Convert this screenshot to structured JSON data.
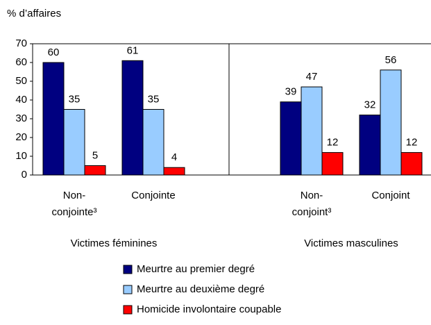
{
  "chart_data": {
    "type": "bar",
    "y_label": "% d’affaires",
    "categories": [
      "Non-conjointe³",
      "Conjointe",
      "Non-conjoint³",
      "Conjoint"
    ],
    "groups": [
      "Victimes féminines",
      "Victimes masculines"
    ],
    "series": [
      {
        "name": "Meurtre au premier degré",
        "color": "#000080",
        "values": [
          60,
          61,
          39,
          32
        ]
      },
      {
        "name": "Meurtre au deuxième degré",
        "color": "#99ccff",
        "values": [
          35,
          35,
          47,
          56
        ]
      },
      {
        "name": "Homicide involontaire coupable",
        "color": "#ff0000",
        "values": [
          5,
          4,
          12,
          12
        ]
      }
    ],
    "ylim": [
      0,
      70
    ],
    "yticks": [
      0,
      10,
      20,
      30,
      40,
      50,
      60,
      70
    ]
  }
}
